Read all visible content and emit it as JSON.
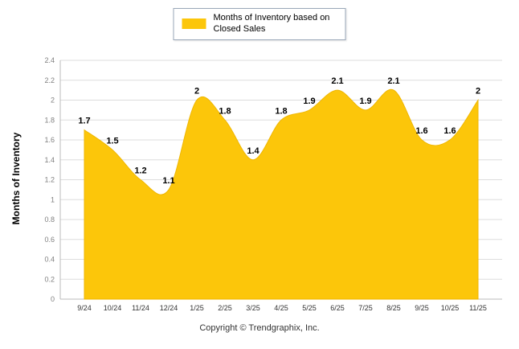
{
  "legend": {
    "label": "Months of Inventory based on Closed Sales"
  },
  "footer": {
    "copyright": "Copyright © Trendgraphix, Inc."
  },
  "chart_data": {
    "type": "area",
    "title": "",
    "xlabel": "",
    "ylabel": "Months of Inventory",
    "categories": [
      "9/24",
      "10/24",
      "11/24",
      "12/24",
      "1/25",
      "2/25",
      "3/25",
      "4/25",
      "5/25",
      "6/25",
      "7/25",
      "8/25",
      "9/25",
      "10/25",
      "11/25"
    ],
    "series": [
      {
        "name": "Months of Inventory based on Closed Sales",
        "values": [
          1.7,
          1.5,
          1.2,
          1.1,
          2,
          1.8,
          1.4,
          1.8,
          1.9,
          2.1,
          1.9,
          2.1,
          1.6,
          1.6,
          2
        ]
      }
    ],
    "ylim": [
      0,
      2.4
    ],
    "ytick_step": 0.2,
    "grid": true,
    "legend_position": "top",
    "data_labels": true,
    "colors": {
      "area_fill": "#FCC60A",
      "area_stroke": "#EFB600",
      "grid": "#DDDDDD",
      "axis_line": "#BBBBBB",
      "ytick_text": "#808080",
      "xtick_text": "#333333",
      "data_label_text": "#000000"
    }
  }
}
